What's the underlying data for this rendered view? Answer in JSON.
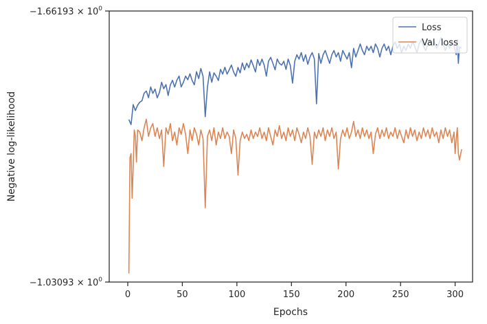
{
  "chart_data": {
    "type": "line",
    "title": "",
    "xlabel": "Epochs",
    "ylabel": "Negative log-likelihood",
    "xlim": [
      -17,
      316
    ],
    "xticks": [
      0,
      50,
      100,
      150,
      200,
      250,
      300
    ],
    "xtick_labels": [
      "0",
      "50",
      "100",
      "150",
      "200",
      "250",
      "300"
    ],
    "ylim": [
      -1.66193,
      -1.03093
    ],
    "yscale": "symlog (display)",
    "ytick_labels": [
      {
        "value": -1.03093,
        "mantissa": "−1.03093",
        "base": "10",
        "exp": "0"
      },
      {
        "value": -1.66193,
        "mantissa": "−1.66193",
        "base": "10",
        "exp": "0"
      }
    ],
    "grid": false,
    "legend_position": "top-right",
    "series": [
      {
        "name": "Loss",
        "color": "#4c72b0",
        "points": [
          [
            1,
            -1.4092
          ],
          [
            3,
            -1.3976
          ],
          [
            5,
            -1.4439
          ],
          [
            7,
            -1.4302
          ],
          [
            9,
            -1.4426
          ],
          [
            11,
            -1.4498
          ],
          [
            13,
            -1.4531
          ],
          [
            15,
            -1.4704
          ],
          [
            17,
            -1.4757
          ],
          [
            19,
            -1.4601
          ],
          [
            21,
            -1.4851
          ],
          [
            23,
            -1.4701
          ],
          [
            25,
            -1.4802
          ],
          [
            27,
            -1.4598
          ],
          [
            29,
            -1.4723
          ],
          [
            31,
            -1.496
          ],
          [
            33,
            -1.481
          ],
          [
            35,
            -1.4905
          ],
          [
            37,
            -1.4652
          ],
          [
            39,
            -1.49
          ],
          [
            41,
            -1.5006
          ],
          [
            43,
            -1.485
          ],
          [
            45,
            -1.501
          ],
          [
            47,
            -1.5104
          ],
          [
            49,
            -1.4853
          ],
          [
            51,
            -1.496
          ],
          [
            53,
            -1.5104
          ],
          [
            55,
            -1.502
          ],
          [
            57,
            -1.5158
          ],
          [
            59,
            -1.5003
          ],
          [
            61,
            -1.4901
          ],
          [
            63,
            -1.5206
          ],
          [
            65,
            -1.5047
          ],
          [
            67,
            -1.528
          ],
          [
            69,
            -1.51
          ],
          [
            71,
            -1.416
          ],
          [
            73,
            -1.485
          ],
          [
            75,
            -1.5204
          ],
          [
            77,
            -1.496
          ],
          [
            79,
            -1.518
          ],
          [
            81,
            -1.5102
          ],
          [
            83,
            -1.5001
          ],
          [
            85,
            -1.526
          ],
          [
            87,
            -1.515
          ],
          [
            89,
            -1.531
          ],
          [
            91,
            -1.515
          ],
          [
            93,
            -1.525
          ],
          [
            95,
            -1.536
          ],
          [
            97,
            -1.5201
          ],
          [
            99,
            -1.51
          ],
          [
            101,
            -1.5304
          ],
          [
            103,
            -1.518
          ],
          [
            105,
            -1.541
          ],
          [
            107,
            -1.525
          ],
          [
            109,
            -1.5403
          ],
          [
            111,
            -1.53
          ],
          [
            113,
            -1.548
          ],
          [
            115,
            -1.535
          ],
          [
            117,
            -1.52
          ],
          [
            119,
            -1.549
          ],
          [
            121,
            -1.535
          ],
          [
            123,
            -1.55
          ],
          [
            125,
            -1.536
          ],
          [
            127,
            -1.5104
          ],
          [
            129,
            -1.545
          ],
          [
            131,
            -1.554
          ],
          [
            133,
            -1.54
          ],
          [
            135,
            -1.525
          ],
          [
            137,
            -1.5501
          ],
          [
            139,
            -1.54
          ],
          [
            141,
            -1.536
          ],
          [
            143,
            -1.545
          ],
          [
            145,
            -1.526
          ],
          [
            147,
            -1.55
          ],
          [
            149,
            -1.535
          ],
          [
            151,
            -1.494
          ],
          [
            153,
            -1.545
          ],
          [
            155,
            -1.56
          ],
          [
            157,
            -1.55
          ],
          [
            159,
            -1.565
          ],
          [
            161,
            -1.545
          ],
          [
            163,
            -1.56
          ],
          [
            165,
            -1.538
          ],
          [
            167,
            -1.555
          ],
          [
            169,
            -1.565
          ],
          [
            171,
            -1.55
          ],
          [
            173,
            -1.446
          ],
          [
            175,
            -1.563
          ],
          [
            177,
            -1.54
          ],
          [
            179,
            -1.56
          ],
          [
            181,
            -1.57
          ],
          [
            183,
            -1.555
          ],
          [
            185,
            -1.54
          ],
          [
            187,
            -1.56
          ],
          [
            189,
            -1.57
          ],
          [
            191,
            -1.555
          ],
          [
            193,
            -1.565
          ],
          [
            195,
            -1.545
          ],
          [
            197,
            -1.57
          ],
          [
            199,
            -1.56
          ],
          [
            201,
            -1.55
          ],
          [
            203,
            -1.565
          ],
          [
            205,
            -1.53
          ],
          [
            207,
            -1.575
          ],
          [
            209,
            -1.555
          ],
          [
            211,
            -1.57
          ],
          [
            213,
            -1.585
          ],
          [
            215,
            -1.57
          ],
          [
            217,
            -1.56
          ],
          [
            219,
            -1.58
          ],
          [
            221,
            -1.57
          ],
          [
            223,
            -1.58
          ],
          [
            225,
            -1.565
          ],
          [
            227,
            -1.585
          ],
          [
            229,
            -1.575
          ],
          [
            231,
            -1.555
          ],
          [
            233,
            -1.575
          ],
          [
            235,
            -1.585
          ],
          [
            237,
            -1.57
          ],
          [
            239,
            -1.58
          ],
          [
            241,
            -1.56
          ],
          [
            243,
            -1.58
          ],
          [
            245,
            -1.59
          ],
          [
            247,
            -1.575
          ],
          [
            249,
            -1.585
          ],
          [
            251,
            -1.565
          ],
          [
            253,
            -1.58
          ],
          [
            255,
            -1.57
          ],
          [
            257,
            -1.585
          ],
          [
            259,
            -1.575
          ],
          [
            261,
            -1.59
          ],
          [
            263,
            -1.58
          ],
          [
            265,
            -1.565
          ],
          [
            267,
            -1.585
          ],
          [
            269,
            -1.595
          ],
          [
            271,
            -1.58
          ],
          [
            273,
            -1.57
          ],
          [
            275,
            -1.585
          ],
          [
            277,
            -1.595
          ],
          [
            279,
            -1.58
          ],
          [
            281,
            -1.59
          ],
          [
            283,
            -1.575
          ],
          [
            285,
            -1.585
          ],
          [
            287,
            -1.6
          ],
          [
            289,
            -1.585
          ],
          [
            291,
            -1.57
          ],
          [
            293,
            -1.585
          ],
          [
            295,
            -1.575
          ],
          [
            297,
            -1.59
          ],
          [
            299,
            -1.58
          ],
          [
            301,
            -1.56
          ],
          [
            302,
            -1.595
          ],
          [
            303,
            -1.54
          ],
          [
            304,
            -1.578
          ],
          [
            306,
            -1.576
          ]
        ]
      },
      {
        "name": "Val. loss",
        "color": "#dd8452",
        "points": [
          [
            1,
            -1.051
          ],
          [
            2,
            -1.32
          ],
          [
            3,
            -1.33
          ],
          [
            4,
            -1.226
          ],
          [
            5,
            -1.3
          ],
          [
            6,
            -1.385
          ],
          [
            7,
            -1.37
          ],
          [
            8,
            -1.31
          ],
          [
            9,
            -1.385
          ],
          [
            11,
            -1.38
          ],
          [
            13,
            -1.36
          ],
          [
            15,
            -1.39
          ],
          [
            17,
            -1.41
          ],
          [
            19,
            -1.37
          ],
          [
            21,
            -1.39
          ],
          [
            23,
            -1.4
          ],
          [
            25,
            -1.37
          ],
          [
            27,
            -1.39
          ],
          [
            29,
            -1.365
          ],
          [
            31,
            -1.385
          ],
          [
            33,
            -1.3
          ],
          [
            35,
            -1.39
          ],
          [
            37,
            -1.375
          ],
          [
            39,
            -1.4
          ],
          [
            41,
            -1.36
          ],
          [
            43,
            -1.38
          ],
          [
            45,
            -1.35
          ],
          [
            47,
            -1.39
          ],
          [
            49,
            -1.375
          ],
          [
            51,
            -1.4
          ],
          [
            53,
            -1.375
          ],
          [
            55,
            -1.33
          ],
          [
            57,
            -1.385
          ],
          [
            59,
            -1.36
          ],
          [
            61,
            -1.39
          ],
          [
            63,
            -1.375
          ],
          [
            65,
            -1.35
          ],
          [
            67,
            -1.385
          ],
          [
            69,
            -1.365
          ],
          [
            71,
            -1.204
          ],
          [
            73,
            -1.37
          ],
          [
            75,
            -1.385
          ],
          [
            77,
            -1.36
          ],
          [
            79,
            -1.39
          ],
          [
            81,
            -1.35
          ],
          [
            83,
            -1.38
          ],
          [
            85,
            -1.365
          ],
          [
            87,
            -1.39
          ],
          [
            89,
            -1.365
          ],
          [
            91,
            -1.38
          ],
          [
            93,
            -1.37
          ],
          [
            95,
            -1.33
          ],
          [
            97,
            -1.385
          ],
          [
            99,
            -1.365
          ],
          [
            101,
            -1.28
          ],
          [
            103,
            -1.36
          ],
          [
            105,
            -1.38
          ],
          [
            107,
            -1.365
          ],
          [
            109,
            -1.375
          ],
          [
            111,
            -1.36
          ],
          [
            113,
            -1.385
          ],
          [
            115,
            -1.365
          ],
          [
            117,
            -1.38
          ],
          [
            119,
            -1.37
          ],
          [
            121,
            -1.39
          ],
          [
            123,
            -1.365
          ],
          [
            125,
            -1.38
          ],
          [
            127,
            -1.36
          ],
          [
            129,
            -1.39
          ],
          [
            131,
            -1.37
          ],
          [
            133,
            -1.35
          ],
          [
            135,
            -1.385
          ],
          [
            137,
            -1.37
          ],
          [
            139,
            -1.395
          ],
          [
            141,
            -1.365
          ],
          [
            143,
            -1.38
          ],
          [
            145,
            -1.36
          ],
          [
            147,
            -1.39
          ],
          [
            149,
            -1.37
          ],
          [
            151,
            -1.385
          ],
          [
            153,
            -1.36
          ],
          [
            155,
            -1.39
          ],
          [
            157,
            -1.375
          ],
          [
            159,
            -1.355
          ],
          [
            161,
            -1.38
          ],
          [
            163,
            -1.365
          ],
          [
            165,
            -1.39
          ],
          [
            167,
            -1.37
          ],
          [
            169,
            -1.305
          ],
          [
            171,
            -1.38
          ],
          [
            173,
            -1.365
          ],
          [
            175,
            -1.385
          ],
          [
            177,
            -1.37
          ],
          [
            179,
            -1.39
          ],
          [
            181,
            -1.36
          ],
          [
            183,
            -1.385
          ],
          [
            185,
            -1.37
          ],
          [
            187,
            -1.39
          ],
          [
            189,
            -1.365
          ],
          [
            191,
            -1.38
          ],
          [
            193,
            -1.294
          ],
          [
            195,
            -1.365
          ],
          [
            197,
            -1.385
          ],
          [
            199,
            -1.37
          ],
          [
            201,
            -1.39
          ],
          [
            203,
            -1.365
          ],
          [
            205,
            -1.38
          ],
          [
            207,
            -1.405
          ],
          [
            209,
            -1.37
          ],
          [
            211,
            -1.385
          ],
          [
            213,
            -1.365
          ],
          [
            215,
            -1.39
          ],
          [
            217,
            -1.37
          ],
          [
            219,
            -1.385
          ],
          [
            221,
            -1.365
          ],
          [
            223,
            -1.38
          ],
          [
            225,
            -1.33
          ],
          [
            227,
            -1.375
          ],
          [
            229,
            -1.39
          ],
          [
            231,
            -1.365
          ],
          [
            233,
            -1.385
          ],
          [
            235,
            -1.37
          ],
          [
            237,
            -1.39
          ],
          [
            239,
            -1.365
          ],
          [
            241,
            -1.38
          ],
          [
            243,
            -1.37
          ],
          [
            245,
            -1.39
          ],
          [
            247,
            -1.365
          ],
          [
            249,
            -1.385
          ],
          [
            251,
            -1.37
          ],
          [
            253,
            -1.355
          ],
          [
            255,
            -1.385
          ],
          [
            257,
            -1.365
          ],
          [
            259,
            -1.39
          ],
          [
            261,
            -1.37
          ],
          [
            263,
            -1.385
          ],
          [
            265,
            -1.36
          ],
          [
            267,
            -1.38
          ],
          [
            269,
            -1.365
          ],
          [
            271,
            -1.39
          ],
          [
            273,
            -1.37
          ],
          [
            275,
            -1.385
          ],
          [
            277,
            -1.365
          ],
          [
            279,
            -1.39
          ],
          [
            281,
            -1.37
          ],
          [
            283,
            -1.38
          ],
          [
            285,
            -1.355
          ],
          [
            287,
            -1.385
          ],
          [
            289,
            -1.365
          ],
          [
            291,
            -1.39
          ],
          [
            293,
            -1.37
          ],
          [
            295,
            -1.385
          ],
          [
            297,
            -1.355
          ],
          [
            299,
            -1.38
          ],
          [
            300,
            -1.33
          ],
          [
            301,
            -1.365
          ],
          [
            302,
            -1.39
          ],
          [
            303,
            -1.33
          ],
          [
            304,
            -1.315
          ],
          [
            306,
            -1.34
          ]
        ]
      }
    ]
  }
}
